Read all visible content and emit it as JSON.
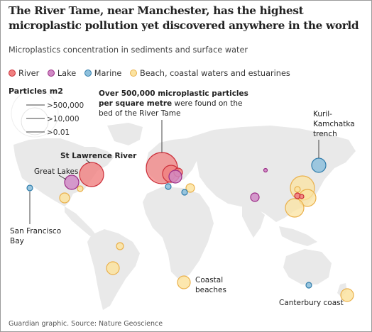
{
  "title": "The River Tame, near Manchester, has the highest microplastic pollution yet discovered anywhere in the world",
  "subtitle": "Microplastics concentration in sediments and surface water",
  "legend": {
    "categories": [
      {
        "key": "river",
        "label": "River",
        "fill": "#f08080",
        "stroke": "#cc2f3a"
      },
      {
        "key": "lake",
        "label": "Lake",
        "fill": "#d08ac5",
        "stroke": "#9b2b86"
      },
      {
        "key": "marine",
        "label": "Marine",
        "fill": "#8ec0dc",
        "stroke": "#2f7cab"
      },
      {
        "key": "beach",
        "label": "Beach, coastal waters and estuarines",
        "fill": "#fbe3a0",
        "stroke": "#eab04a"
      }
    ]
  },
  "size_key": {
    "title": "Particles m2",
    "levels": [
      ">500,000",
      ">10,000",
      ">0.01"
    ]
  },
  "annotations": {
    "tame_prefix": "Over 500,000 microplastic particles",
    "tame_line2": "per square metre",
    "tame_line2_rest": " were found on the",
    "tame_line3": "bed of the River Tame",
    "st_lawrence": "St Lawrence River",
    "great_lakes": "Great Lakes",
    "san_francisco_1": "San Francisco",
    "san_francisco_2": "Bay",
    "kuril_1": "Kuril-",
    "kuril_2": "Kamchatka",
    "kuril_3": "trench",
    "coastal_1": "Coastal",
    "coastal_2": "beaches",
    "canterbury": "Canterbury coast"
  },
  "footer": "Guardian graphic. Source: Nature Geoscience",
  "colors": {
    "land": "#e9e9e9",
    "text": "#222222",
    "leader": "#333333"
  }
}
